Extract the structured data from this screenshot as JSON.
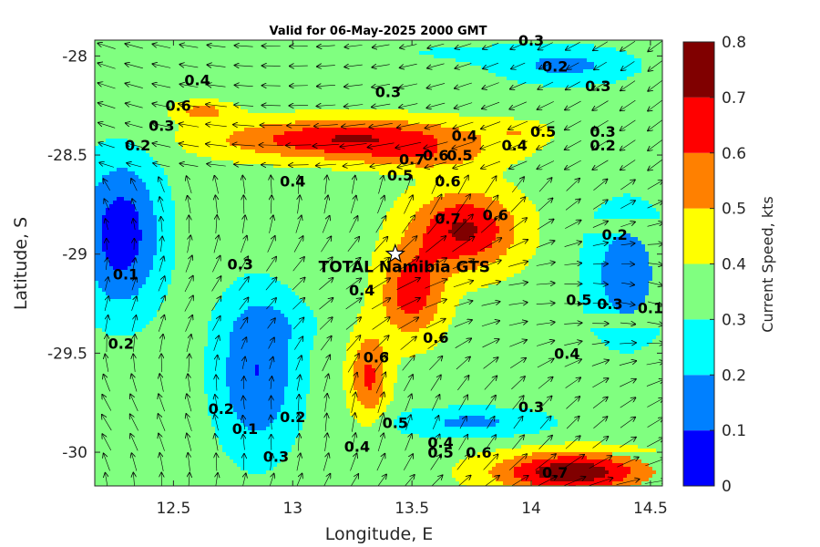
{
  "chart_data": {
    "type": "heatmap",
    "subtype": "filled-contour-with-current-vectors",
    "title": "Valid for 06-May-2025 2000 GMT",
    "xlabel": "Longitude, E",
    "ylabel": "Latitude, S",
    "xlim": [
      12.17,
      14.55
    ],
    "ylim": [
      -30.17,
      -27.92
    ],
    "xticks": [
      12.5,
      13,
      13.5,
      14,
      14.5
    ],
    "xtick_labels": [
      "12.5",
      "13",
      "13.5",
      "14",
      "14.5"
    ],
    "yticks": [
      -28,
      -28.5,
      -29,
      -29.5,
      -30
    ],
    "ytick_labels": [
      "-28",
      "-28.5",
      "-29",
      "-29.5",
      "-30"
    ],
    "colorbar": {
      "label": "Current Speed, kts",
      "levels": [
        0,
        0.1,
        0.2,
        0.3,
        0.4,
        0.5,
        0.6,
        0.7,
        0.8
      ],
      "tick_labels": [
        "0",
        "0.1",
        "0.2",
        "0.3",
        "0.4",
        "0.5",
        "0.6",
        "0.7",
        "0.8"
      ],
      "colors": [
        "#0000ff",
        "#0080ff",
        "#00ffff",
        "#80ff80",
        "#ffff00",
        "#ff8000",
        "#ff0000",
        "#800000"
      ]
    },
    "site_marker": {
      "label": "TOTAL Namibia GTS",
      "lon": 13.43,
      "lat": -29.0,
      "symbol": "star"
    },
    "contour_labels": [
      {
        "text": "0.3",
        "lon": 14.0,
        "lat": -27.92
      },
      {
        "text": "0.2",
        "lon": 14.1,
        "lat": -28.05
      },
      {
        "text": "0.3",
        "lon": 14.28,
        "lat": -28.15
      },
      {
        "text": "0.3",
        "lon": 13.4,
        "lat": -28.18
      },
      {
        "text": "0.4",
        "lon": 12.6,
        "lat": -28.12
      },
      {
        "text": "0.6",
        "lon": 12.52,
        "lat": -28.25
      },
      {
        "text": "0.3",
        "lon": 12.45,
        "lat": -28.35
      },
      {
        "text": "0.2",
        "lon": 12.35,
        "lat": -28.45
      },
      {
        "text": "0.4",
        "lon": 13.72,
        "lat": -28.4
      },
      {
        "text": "0.5",
        "lon": 14.05,
        "lat": -28.38
      },
      {
        "text": "0.4",
        "lon": 13.93,
        "lat": -28.45
      },
      {
        "text": "0.3",
        "lon": 14.3,
        "lat": -28.38
      },
      {
        "text": "0.2",
        "lon": 14.3,
        "lat": -28.45
      },
      {
        "text": "0.6",
        "lon": 13.6,
        "lat": -28.5
      },
      {
        "text": "0.5",
        "lon": 13.7,
        "lat": -28.5
      },
      {
        "text": "0.7",
        "lon": 13.5,
        "lat": -28.52
      },
      {
        "text": "0.5",
        "lon": 13.45,
        "lat": -28.6
      },
      {
        "text": "0.6",
        "lon": 13.65,
        "lat": -28.63
      },
      {
        "text": "0.4",
        "lon": 13.0,
        "lat": -28.63
      },
      {
        "text": "0.6",
        "lon": 13.85,
        "lat": -28.8
      },
      {
        "text": "0.7",
        "lon": 13.65,
        "lat": -28.82
      },
      {
        "text": "0.2",
        "lon": 14.35,
        "lat": -28.9
      },
      {
        "text": "0.3",
        "lon": 12.78,
        "lat": -29.05
      },
      {
        "text": "0.1",
        "lon": 12.3,
        "lat": -29.1
      },
      {
        "text": "0.4",
        "lon": 13.29,
        "lat": -29.18
      },
      {
        "text": "0.5",
        "lon": 14.2,
        "lat": -29.23
      },
      {
        "text": "0.3",
        "lon": 14.33,
        "lat": -29.25
      },
      {
        "text": "0.1",
        "lon": 14.5,
        "lat": -29.27
      },
      {
        "text": "0.2",
        "lon": 12.28,
        "lat": -29.45
      },
      {
        "text": "0.6",
        "lon": 13.6,
        "lat": -29.42
      },
      {
        "text": "0.6",
        "lon": 13.35,
        "lat": -29.52
      },
      {
        "text": "0.4",
        "lon": 14.15,
        "lat": -29.5
      },
      {
        "text": "0.3",
        "lon": 14.0,
        "lat": -29.77
      },
      {
        "text": "0.2",
        "lon": 12.7,
        "lat": -29.78
      },
      {
        "text": "0.2",
        "lon": 13.0,
        "lat": -29.82
      },
      {
        "text": "0.1",
        "lon": 12.8,
        "lat": -29.88
      },
      {
        "text": "0.5",
        "lon": 13.43,
        "lat": -29.85
      },
      {
        "text": "0.4",
        "lon": 13.27,
        "lat": -29.97
      },
      {
        "text": "0.4",
        "lon": 13.62,
        "lat": -29.95
      },
      {
        "text": "0.3",
        "lon": 12.93,
        "lat": -30.02
      },
      {
        "text": "0.5",
        "lon": 13.62,
        "lat": -30.0
      },
      {
        "text": "0.6",
        "lon": 13.78,
        "lat": -30.0
      },
      {
        "text": "0.7",
        "lon": 14.1,
        "lat": -30.1
      }
    ]
  }
}
